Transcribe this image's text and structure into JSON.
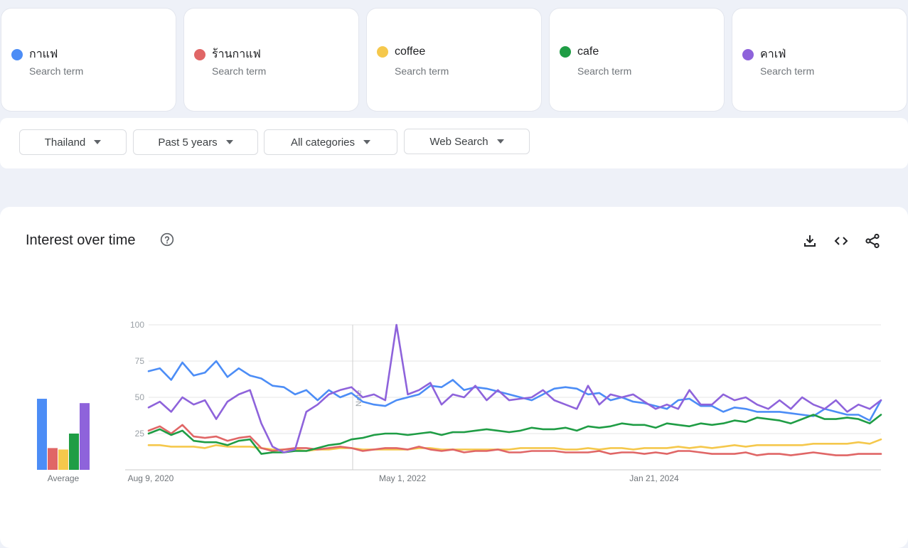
{
  "terms": [
    {
      "name": "กาแฟ",
      "sub": "Search term",
      "color": "#4c8df6"
    },
    {
      "name": "ร้านกาแฟ",
      "sub": "Search term",
      "color": "#e06666"
    },
    {
      "name": "coffee",
      "sub": "Search term",
      "color": "#f5c84c"
    },
    {
      "name": "cafe",
      "sub": "Search term",
      "color": "#1f9d45"
    },
    {
      "name": "คาเฟ่",
      "sub": "Search term",
      "color": "#8e63db"
    }
  ],
  "filters": {
    "region": "Thailand",
    "time": "Past 5 years",
    "category": "All categories",
    "search_type": "Web Search"
  },
  "card": {
    "title": "Interest over time",
    "help_icon": "help-circle-icon",
    "actions": [
      "download-icon",
      "embed-code-icon",
      "share-icon"
    ]
  },
  "chart_data": {
    "type": "line",
    "ylim": [
      0,
      100
    ],
    "yticks": [
      "100",
      "75",
      "50",
      "25"
    ],
    "xtick_labels": [
      "Aug 9, 2020",
      "May 1, 2022",
      "Jan 21, 2024"
    ],
    "average_label": "Average",
    "note_label": "Note",
    "averages": [
      49,
      15,
      14,
      25,
      46
    ],
    "series": [
      {
        "name": "กาแฟ",
        "values": [
          68,
          70,
          62,
          74,
          65,
          67,
          75,
          64,
          70,
          65,
          63,
          58,
          57,
          52,
          55,
          48,
          55,
          50,
          53,
          47,
          45,
          44,
          48,
          50,
          52,
          58,
          57,
          62,
          55,
          57,
          56,
          54,
          52,
          50,
          48,
          52,
          56,
          57,
          56,
          52,
          53,
          48,
          50,
          47,
          46,
          44,
          42,
          48,
          49,
          44,
          44,
          40,
          43,
          42,
          40,
          40,
          40,
          39,
          38,
          37,
          42,
          40,
          38,
          38,
          34,
          48
        ]
      },
      {
        "name": "ร้านกาแฟ",
        "values": [
          27,
          30,
          25,
          31,
          23,
          22,
          23,
          20,
          22,
          23,
          15,
          13,
          14,
          15,
          15,
          14,
          15,
          16,
          15,
          13,
          14,
          15,
          15,
          14,
          16,
          14,
          13,
          14,
          12,
          13,
          13,
          14,
          12,
          12,
          13,
          13,
          13,
          12,
          12,
          12,
          13,
          11,
          12,
          12,
          11,
          12,
          11,
          13,
          13,
          12,
          11,
          11,
          11,
          12,
          10,
          11,
          11,
          10,
          11,
          12,
          11,
          10,
          10,
          11,
          11,
          11
        ]
      },
      {
        "name": "coffee",
        "values": [
          17,
          17,
          16,
          16,
          16,
          15,
          17,
          16,
          16,
          16,
          15,
          14,
          14,
          14,
          13,
          14,
          14,
          15,
          15,
          14,
          14,
          14,
          14,
          14,
          15,
          15,
          14,
          14,
          14,
          14,
          14,
          14,
          14,
          15,
          15,
          15,
          15,
          14,
          14,
          15,
          14,
          15,
          15,
          14,
          15,
          15,
          15,
          16,
          15,
          16,
          15,
          16,
          17,
          16,
          17,
          17,
          17,
          17,
          17,
          18,
          18,
          18,
          18,
          19,
          18,
          21
        ]
      },
      {
        "name": "cafe",
        "values": [
          25,
          28,
          24,
          27,
          20,
          19,
          19,
          17,
          20,
          21,
          11,
          12,
          12,
          13,
          13,
          15,
          17,
          18,
          21,
          22,
          24,
          25,
          25,
          24,
          25,
          26,
          24,
          26,
          26,
          27,
          28,
          27,
          26,
          27,
          29,
          28,
          28,
          29,
          27,
          30,
          29,
          30,
          32,
          31,
          31,
          29,
          32,
          31,
          30,
          32,
          31,
          32,
          34,
          33,
          36,
          35,
          34,
          32,
          35,
          38,
          35,
          35,
          36,
          35,
          32,
          38
        ]
      },
      {
        "name": "คาเฟ่",
        "values": [
          43,
          47,
          40,
          50,
          45,
          48,
          35,
          47,
          52,
          55,
          32,
          16,
          12,
          14,
          40,
          45,
          52,
          55,
          57,
          50,
          52,
          48,
          100,
          52,
          55,
          60,
          45,
          52,
          50,
          58,
          48,
          55,
          48,
          49,
          50,
          55,
          48,
          45,
          42,
          58,
          45,
          52,
          50,
          52,
          47,
          42,
          45,
          42,
          55,
          45,
          45,
          52,
          48,
          50,
          45,
          42,
          48,
          42,
          50,
          45,
          42,
          48,
          40,
          45,
          42,
          48
        ]
      }
    ]
  }
}
